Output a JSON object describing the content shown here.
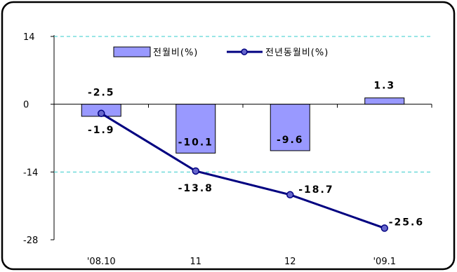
{
  "chart_data": {
    "type": "bar",
    "categories": [
      "'08.10",
      "11",
      "12",
      "'09.1"
    ],
    "series": [
      {
        "name": "전월비(%)",
        "type": "bar",
        "values": [
          -2.5,
          -10.1,
          -9.6,
          1.3
        ],
        "labels": [
          "-2.5",
          "-10.1",
          "-9.6",
          "1.3"
        ],
        "color": "#9999ff"
      },
      {
        "name": "전년동월비(%)",
        "type": "line",
        "values": [
          -1.9,
          -13.8,
          -18.7,
          -25.6
        ],
        "labels": [
          "-1.9",
          "-13.8",
          "-18.7",
          "-25.6"
        ],
        "color": "#000080"
      }
    ],
    "ylim": [
      -28,
      14
    ],
    "yticks": [
      14,
      0,
      -14,
      -28
    ],
    "ytick_labels": [
      "14",
      "0",
      "-14",
      "-28"
    ],
    "gridlines": [
      14,
      -14
    ],
    "grid_color": "#33cccc",
    "legend_position": "top"
  }
}
